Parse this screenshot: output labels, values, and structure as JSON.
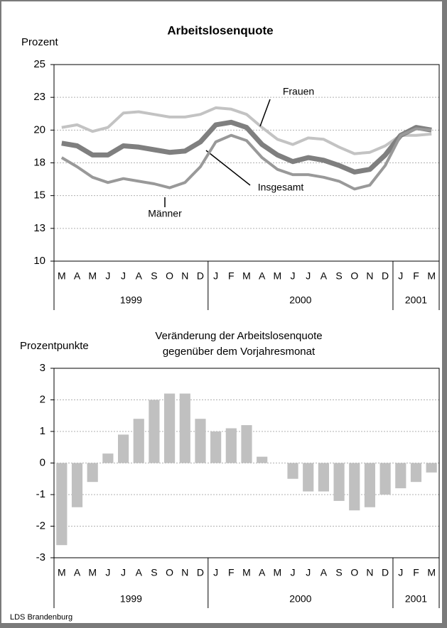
{
  "chart_data": [
    {
      "type": "line",
      "title": [
        "Arbeitslosenquote"
      ],
      "y_label": "Prozent",
      "category_groups": [
        {
          "label": "1999",
          "categories": [
            "M",
            "A",
            "M",
            "J",
            "J",
            "A",
            "S",
            "O",
            "N",
            "D"
          ]
        },
        {
          "label": "2000",
          "categories": [
            "J",
            "F",
            "M",
            "A",
            "M",
            "J",
            "J",
            "A",
            "S",
            "O",
            "N",
            "D"
          ]
        },
        {
          "label": "2001",
          "categories": [
            "J",
            "F",
            "M"
          ]
        }
      ],
      "ylim": [
        10,
        25
      ],
      "yticks": [
        10,
        {
          "value": 12.5,
          "label": "13"
        },
        15,
        {
          "value": 17.5,
          "label": "18"
        },
        20,
        {
          "value": 22.5,
          "label": "23"
        },
        25
      ],
      "grid": true,
      "series": [
        {
          "name": "Frauen",
          "color": "#c3c3c3",
          "width": 4,
          "values": [
            20.2,
            20.4,
            19.9,
            20.2,
            21.3,
            21.4,
            21.2,
            21.0,
            21.0,
            21.2,
            21.7,
            21.6,
            21.2,
            20.2,
            19.3,
            18.9,
            19.4,
            19.3,
            18.7,
            18.2,
            18.3,
            18.8,
            19.6,
            19.6,
            19.7
          ]
        },
        {
          "name": "Insgesamt",
          "color": "#7f7f7f",
          "width": 7,
          "values": [
            19.0,
            18.8,
            18.1,
            18.1,
            18.8,
            18.7,
            18.5,
            18.3,
            18.4,
            19.1,
            20.4,
            20.6,
            20.2,
            18.9,
            18.1,
            17.6,
            17.9,
            17.7,
            17.3,
            16.8,
            17.0,
            18.1,
            19.6,
            20.2,
            20.0
          ]
        },
        {
          "name": "Männer",
          "color": "#999999",
          "width": 4,
          "values": [
            17.9,
            17.2,
            16.4,
            16.0,
            16.3,
            16.1,
            15.9,
            15.6,
            16.0,
            17.2,
            19.1,
            19.6,
            19.2,
            17.9,
            17.0,
            16.6,
            16.6,
            16.4,
            16.1,
            15.5,
            15.8,
            17.3,
            19.6,
            20.1,
            20.0
          ]
        }
      ]
    },
    {
      "type": "bar",
      "title": [
        "Veränderung der Arbeitslosenquote",
        "gegenüber dem Vorjahresmonat"
      ],
      "y_label": "Prozentpunkte",
      "category_groups": [
        {
          "label": "1999",
          "categories": [
            "M",
            "A",
            "M",
            "J",
            "J",
            "A",
            "S",
            "O",
            "N",
            "D"
          ]
        },
        {
          "label": "2000",
          "categories": [
            "J",
            "F",
            "M",
            "A",
            "M",
            "J",
            "J",
            "A",
            "S",
            "O",
            "N",
            "D"
          ]
        },
        {
          "label": "2001",
          "categories": [
            "J",
            "F",
            "M"
          ]
        }
      ],
      "ylim": [
        -3,
        3
      ],
      "yticks": [
        -3,
        -2,
        -1,
        0,
        1,
        2,
        3
      ],
      "grid": true,
      "color": "#c0c0c0",
      "values": [
        -2.6,
        -1.4,
        -0.6,
        0.3,
        0.9,
        1.4,
        2.0,
        2.2,
        2.2,
        1.4,
        1.0,
        1.1,
        1.2,
        0.2,
        0,
        -0.5,
        -0.9,
        -0.9,
        -1.2,
        -1.5,
        -1.4,
        -1.0,
        -0.8,
        -0.6,
        -0.3
      ]
    }
  ],
  "source": "LDS Brandenburg"
}
